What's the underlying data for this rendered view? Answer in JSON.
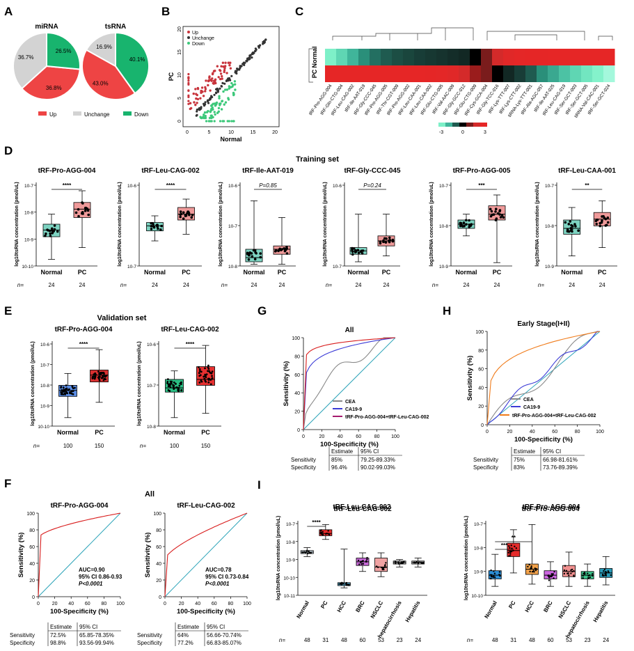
{
  "letters": {
    "A": "A",
    "B": "B",
    "C": "C",
    "D": "D",
    "E": "E",
    "F": "F",
    "G": "G",
    "H": "H",
    "I": "I"
  },
  "pie_legend": [
    "Up",
    "Unchange",
    "Down"
  ],
  "scatter_legend": [
    "Up",
    "Unchange",
    "Down"
  ],
  "scatter_xlabel": "Normal",
  "scatter_ylabel": "PC",
  "heat_rows": [
    "Normal",
    "PC"
  ],
  "heat_cols": [
    "tRF-Pro-AGG-004",
    "tRF-Gln-CTG-004",
    "tRF-Leu-CAG-002",
    "tRF-Ile-AAT-019",
    "tRF-Gly-CCC-045",
    "tRF-Pro-AGG-005",
    "tRF-Thr-CGT-009",
    "tRF-Pro-AGG-002",
    "tRF-Leu-CAA-001",
    "tRF-Leu-CAA-002",
    "tRF-Glu-CTG-005",
    "tRF-Val-AAC-009",
    "tRF-Gly-GCC-012",
    "tRF-Glu-CTG-009",
    "tRF-Cys-GCA-004",
    "tRF-Gly-TCC-016",
    "tRF-Lys-TTT-007",
    "tRF-Lys-CTT-002",
    "tiRNA-Lys-TTT-001",
    "tRF-Ala-AGC-057",
    "tRF-Ile-AAT-025",
    "tRF-Leu-CAG-019",
    "tRF-Ser-GCT-003",
    "tRF-Ser-GCT-005",
    "tiRNA-Val-CAC-001",
    "tRF-Ser-GCT-024"
  ],
  "heat_scale": [
    "-3",
    "0",
    "3"
  ],
  "training_title": "Training set",
  "validation_title": "Validation set",
  "ylab_conc": "log10tsRNA concentration (pmol/uL)",
  "n_label": "n=",
  "pval_labels": {
    "ile": "P=0.85",
    "gly": "P=0.24"
  },
  "roc_xlabel": "100-Specificity (%)",
  "roc_ylabel": "Sensitivity (%)",
  "G_title": "All",
  "H_title": "Early Stage(I+II)",
  "F_title": "All",
  "I_titles": [
    "tRF-Leu-CAG-002",
    "tRF-Pro-AGG-004"
  ],
  "legend_GH": [
    "CEA",
    "CA19-9",
    "tRF-Pro-AGG-004+tRF-Leu-CAG-002"
  ],
  "tables": {
    "G": {
      "head": [
        "Estimate",
        "95% CI"
      ],
      "rows": [
        [
          "Sensitivity",
          "85%",
          "79.25-89.33%"
        ],
        [
          "Specificity",
          "96.4%",
          "90.02-99.03%"
        ]
      ]
    },
    "H": {
      "head": [
        "Estimate",
        "95% CI"
      ],
      "rows": [
        [
          "Sensitivity",
          "75%",
          "66.98-81.61%"
        ],
        [
          "Specificity",
          "83%",
          "73.76-89.39%"
        ]
      ]
    },
    "F1": {
      "head": [
        "Estimate",
        "95% CI"
      ],
      "rows": [
        [
          "Sensitivity",
          "72.5%",
          "65.85-78.35%"
        ],
        [
          "Specificity",
          "98.8%",
          "93.56-99.94%"
        ]
      ]
    },
    "F2": {
      "head": [
        "Estimate",
        "95% CI"
      ],
      "rows": [
        [
          "Sensitivity",
          "64%",
          "56.66-70.74%"
        ],
        [
          "Specificity",
          "77.2%",
          "66.83-85.07%"
        ]
      ]
    }
  },
  "F_auc": [
    {
      "title": "tRF-Pro-AGG-004",
      "auc": "AUC=0.90",
      "ci": "95% CI  0.86-0.93",
      "p": "P<0.0001"
    },
    {
      "title": "tRF-Leu-CAG-002",
      "auc": "AUC=0.78",
      "ci": "95% CI  0.73-0.84",
      "p": "P<0.0001"
    }
  ],
  "chart_data": [
    {
      "type": "pie",
      "title": "miRNA",
      "labels": [
        "Up",
        "Unchange",
        "Down"
      ],
      "values": [
        36.8,
        36.7,
        26.5
      ],
      "value_labels": [
        "36.8%",
        "36.7%",
        "26.5%"
      ],
      "colors": [
        "#ee4444",
        "#d3d3d3",
        "#18b46e"
      ]
    },
    {
      "type": "pie",
      "title": "tsRNA",
      "labels": [
        "Up",
        "Unchange",
        "Down"
      ],
      "values": [
        43.0,
        16.9,
        40.1
      ],
      "value_labels": [
        "43.0%",
        "16.9%",
        "40.1%"
      ],
      "colors": [
        "#ee4444",
        "#d3d3d3",
        "#18b46e"
      ]
    },
    {
      "type": "scatter",
      "xlabel": "Normal",
      "ylabel": "PC",
      "xlim": [
        0,
        20
      ],
      "ylim": [
        0,
        20
      ],
      "xticks": [
        "0",
        "5",
        "10",
        "15",
        "20"
      ],
      "yticks": [
        "0",
        "5",
        "10",
        "15",
        "20"
      ]
    },
    {
      "type": "heatmap",
      "rows": [
        "Normal",
        "PC"
      ],
      "scale": [
        -3,
        3
      ]
    },
    {
      "type": "box",
      "title": "tRF-Pro-AGG-004",
      "groups": [
        "Normal",
        "PC"
      ],
      "n": [
        "24",
        "24"
      ],
      "sig": "****",
      "yticks": [
        "10-7",
        "10-8",
        "10-9",
        "10-10"
      ]
    },
    {
      "type": "box",
      "title": "tRF-Leu-CAG-002",
      "groups": [
        "Normal",
        "PC"
      ],
      "n": [
        "24",
        "24"
      ],
      "sig": "****",
      "yticks": [
        "10-6",
        "10-7"
      ]
    },
    {
      "type": "box",
      "title": "tRF-Ile-AAT-019",
      "groups": [
        "Normal",
        "PC"
      ],
      "n": [
        "24",
        "24"
      ],
      "sig": "P=0.85",
      "yticks": [
        "10-6",
        "10-7",
        "10-8"
      ]
    },
    {
      "type": "box",
      "title": "tRF-Gly-CCC-045",
      "groups": [
        "Normal",
        "PC"
      ],
      "n": [
        "24",
        "24"
      ],
      "sig": "P=0.24",
      "yticks": [
        "10-6",
        "10-7"
      ]
    },
    {
      "type": "box",
      "title": "tRF-Pro-AGG-005",
      "groups": [
        "Normal",
        "PC"
      ],
      "n": [
        "24",
        "24"
      ],
      "sig": "***",
      "yticks": [
        "10-7",
        "10-8",
        "10-9"
      ]
    },
    {
      "type": "box",
      "title": "tRF-Leu-CAA-001",
      "groups": [
        "Normal",
        "PC"
      ],
      "n": [
        "24",
        "24"
      ],
      "sig": "**",
      "yticks": [
        "10-7",
        "10-8",
        "10-9"
      ]
    },
    {
      "type": "box",
      "title": "tRF-Pro-AGG-004",
      "groups": [
        "Normal",
        "PC"
      ],
      "n": [
        "100",
        "150"
      ],
      "sig": "****",
      "yticks": [
        "10-6",
        "10-7",
        "10-8",
        "10-9",
        "10-10"
      ]
    },
    {
      "type": "box",
      "title": "tRF-Leu-CAG-002",
      "groups": [
        "Normal",
        "PC"
      ],
      "n": [
        "100",
        "150"
      ],
      "sig": "****",
      "yticks": [
        "10-6",
        "10-7",
        "10-8"
      ]
    },
    {
      "type": "line",
      "title": "All",
      "series": [
        {
          "name": "CEA"
        },
        {
          "name": "CA19-9"
        },
        {
          "name": "tRF-Pro-AGG-004+tRF-Leu-CAG-002"
        }
      ],
      "xticks": [
        "0",
        "20",
        "40",
        "60",
        "80",
        "100"
      ],
      "yticks": [
        "0",
        "20",
        "40",
        "60",
        "80",
        "100"
      ]
    },
    {
      "type": "line",
      "title": "Early Stage(I+II)",
      "series": [
        {
          "name": "CEA"
        },
        {
          "name": "CA19-9"
        },
        {
          "name": "tRF-Pro-AGG-004+tRF-Leu-CAG-002"
        }
      ],
      "xticks": [
        "0",
        "20",
        "40",
        "60",
        "80",
        "100"
      ],
      "yticks": [
        "0",
        "20",
        "40",
        "60",
        "80",
        "100"
      ]
    },
    {
      "type": "line",
      "title": "tRF-Pro-AGG-004",
      "auc": 0.9,
      "xticks": [
        "0",
        "20",
        "40",
        "60",
        "80",
        "100"
      ],
      "yticks": [
        "0",
        "20",
        "40",
        "60",
        "80",
        "100"
      ]
    },
    {
      "type": "line",
      "title": "tRF-Leu-CAG-002",
      "auc": 0.78,
      "xticks": [
        "0",
        "20",
        "40",
        "60",
        "80",
        "100"
      ],
      "yticks": [
        "0",
        "20",
        "40",
        "60",
        "80",
        "100"
      ]
    },
    {
      "type": "box",
      "title": "tRF-Leu-CAG-002",
      "groups": [
        "Normal",
        "PC",
        "HCC",
        "BRC",
        "NSCLC",
        "hepatocirrhosis",
        "Hepatitis"
      ],
      "n": [
        "48",
        "31",
        "48",
        "60",
        "53",
        "23",
        "24"
      ],
      "sig": "****",
      "yticks": [
        "10-7",
        "10-8",
        "10-9",
        "10-10",
        "10-11"
      ]
    },
    {
      "type": "box",
      "title": "tRF-Pro-AGG-004",
      "groups": [
        "Normal",
        "PC",
        "HCC",
        "BRC",
        "NSCLC",
        "hepatocirrhosis",
        "Hepatitis"
      ],
      "n": [
        "48",
        "31",
        "48",
        "60",
        "53",
        "23",
        "24"
      ],
      "sig": [
        "**",
        "***"
      ],
      "yticks": [
        "10-7",
        "10-8",
        "10-9",
        "10-10"
      ]
    }
  ]
}
